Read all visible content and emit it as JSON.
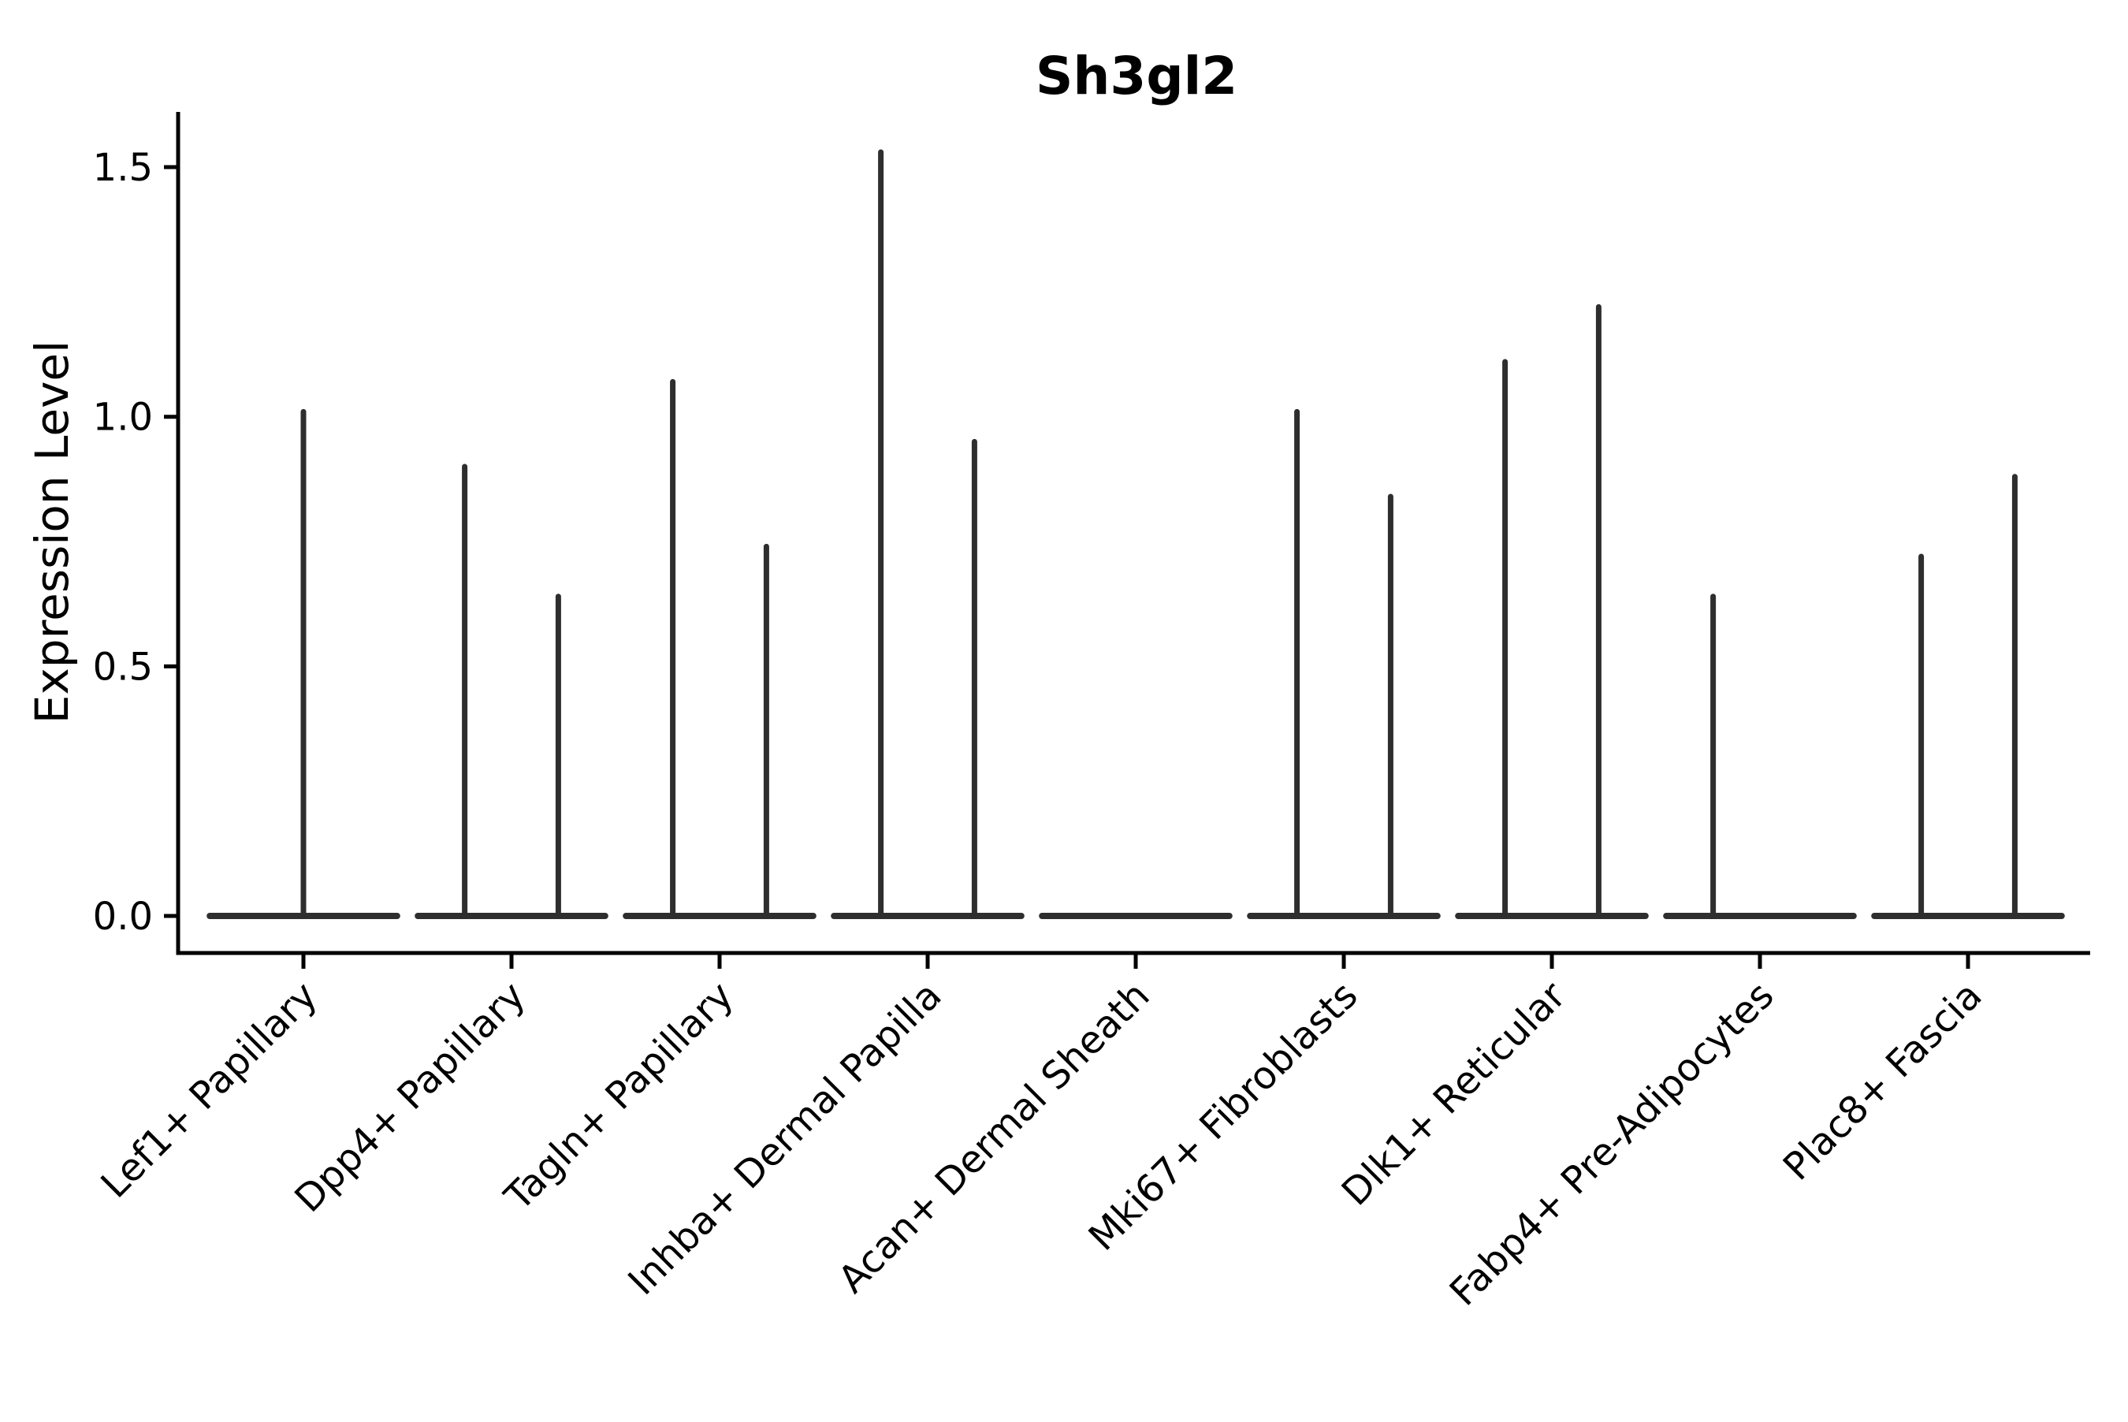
{
  "chart_data": {
    "type": "violin",
    "title": "Sh3gl2",
    "ylabel": "Expression Level",
    "xlabel": "",
    "background": "#ffffff",
    "violin_color": "#2e2e2e",
    "axis_color": "#000000",
    "ylim": [
      0,
      1.61
    ],
    "grid": false,
    "legend": "none",
    "yticks": [
      {
        "value": 0.0,
        "label": "0.0"
      },
      {
        "value": 0.5,
        "label": "0.5"
      },
      {
        "value": 1.0,
        "label": "1.0"
      },
      {
        "value": 1.5,
        "label": "1.5"
      }
    ],
    "categories": [
      "Lef1+ Papillary",
      "Dpp4+ Papillary",
      "Tagln+ Papillary",
      "Inhba+ Dermal Papilla",
      "Acan+ Dermal Sheath",
      "Mki67+ Fibroblasts",
      "Dlk1+ Reticular",
      "Fabp4+ Pre-Adipocytes",
      "Plac8+ Fascia"
    ],
    "violins": [
      {
        "category": "Lef1+ Papillary",
        "spikes": [
          {
            "position": "center",
            "max": 1.01
          }
        ]
      },
      {
        "category": "Dpp4+ Papillary",
        "spikes": [
          {
            "position": "left",
            "max": 0.9
          },
          {
            "position": "right",
            "max": 0.64
          }
        ]
      },
      {
        "category": "Tagln+ Papillary",
        "spikes": [
          {
            "position": "left",
            "max": 1.07
          },
          {
            "position": "right",
            "max": 0.74
          }
        ]
      },
      {
        "category": "Inhba+ Dermal Papilla",
        "spikes": [
          {
            "position": "left",
            "max": 1.53
          },
          {
            "position": "right",
            "max": 0.95
          }
        ]
      },
      {
        "category": "Acan+ Dermal Sheath",
        "spikes": []
      },
      {
        "category": "Mki67+ Fibroblasts",
        "spikes": [
          {
            "position": "left",
            "max": 1.01
          },
          {
            "position": "right",
            "max": 0.84
          }
        ]
      },
      {
        "category": "Dlk1+ Reticular",
        "spikes": [
          {
            "position": "left",
            "max": 1.11
          },
          {
            "position": "right",
            "max": 1.22
          }
        ]
      },
      {
        "category": "Fabp4+ Pre-Adipocytes",
        "spikes": [
          {
            "position": "left",
            "max": 0.64
          }
        ]
      },
      {
        "category": "Plac8+ Fascia",
        "spikes": [
          {
            "position": "left",
            "max": 0.72
          },
          {
            "position": "right",
            "max": 0.88
          }
        ]
      }
    ]
  }
}
